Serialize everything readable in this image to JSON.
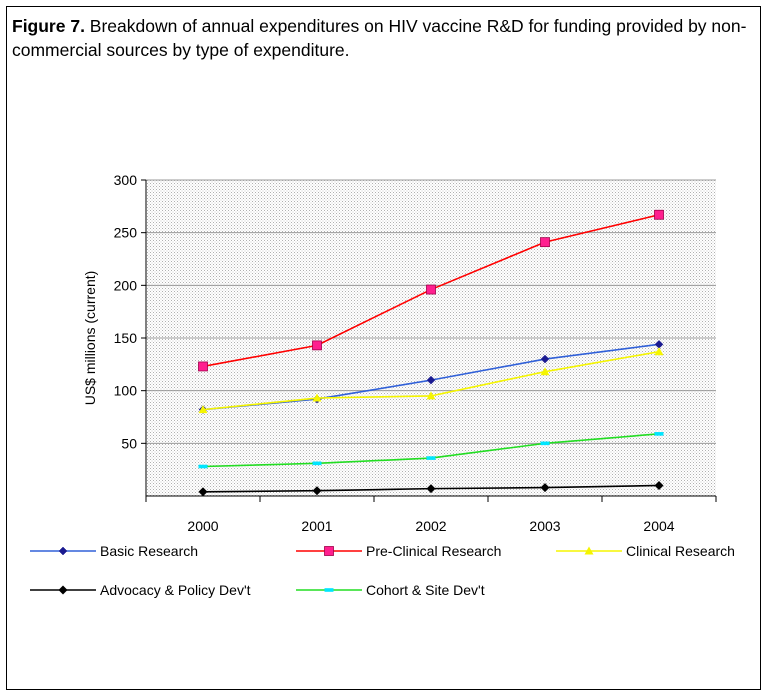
{
  "figure": {
    "label": "Figure 7.",
    "caption": " Breakdown of annual expenditures on HIV vaccine R&D for funding provided by non-commercial sources by type of expenditure."
  },
  "chart_data": {
    "type": "line",
    "title": "",
    "xlabel": "",
    "ylabel": "US$ millions (current)",
    "ylim": [
      0,
      300
    ],
    "yticks": [
      50,
      100,
      150,
      200,
      250,
      300
    ],
    "categories": [
      "2000",
      "2001",
      "2002",
      "2003",
      "2004"
    ],
    "grid": true,
    "legend_position": "bottom",
    "series": [
      {
        "name": "Basic Research",
        "values": [
          82,
          92,
          110,
          130,
          144
        ],
        "color": "#3060d8",
        "marker": "diamond-small",
        "marker_fill": "#1a1a90"
      },
      {
        "name": "Pre-Clinical Research",
        "values": [
          123,
          143,
          196,
          241,
          267
        ],
        "color": "#ff0000",
        "marker": "square",
        "marker_fill": "#ff1f8f"
      },
      {
        "name": "Clinical Research",
        "values": [
          82,
          93,
          95,
          118,
          137
        ],
        "color": "#f5f500",
        "marker": "triangle",
        "marker_fill": "#f5f500"
      },
      {
        "name": "Advocacy & Policy Dev't",
        "values": [
          4,
          5,
          7,
          8,
          10
        ],
        "color": "#000000",
        "marker": "diamond",
        "marker_fill": "#000000"
      },
      {
        "name": "Cohort & Site Dev't",
        "values": [
          28,
          31,
          36,
          50,
          59
        ],
        "color": "#22dd22",
        "marker": "dash",
        "marker_fill": "#00e5ff"
      }
    ]
  }
}
